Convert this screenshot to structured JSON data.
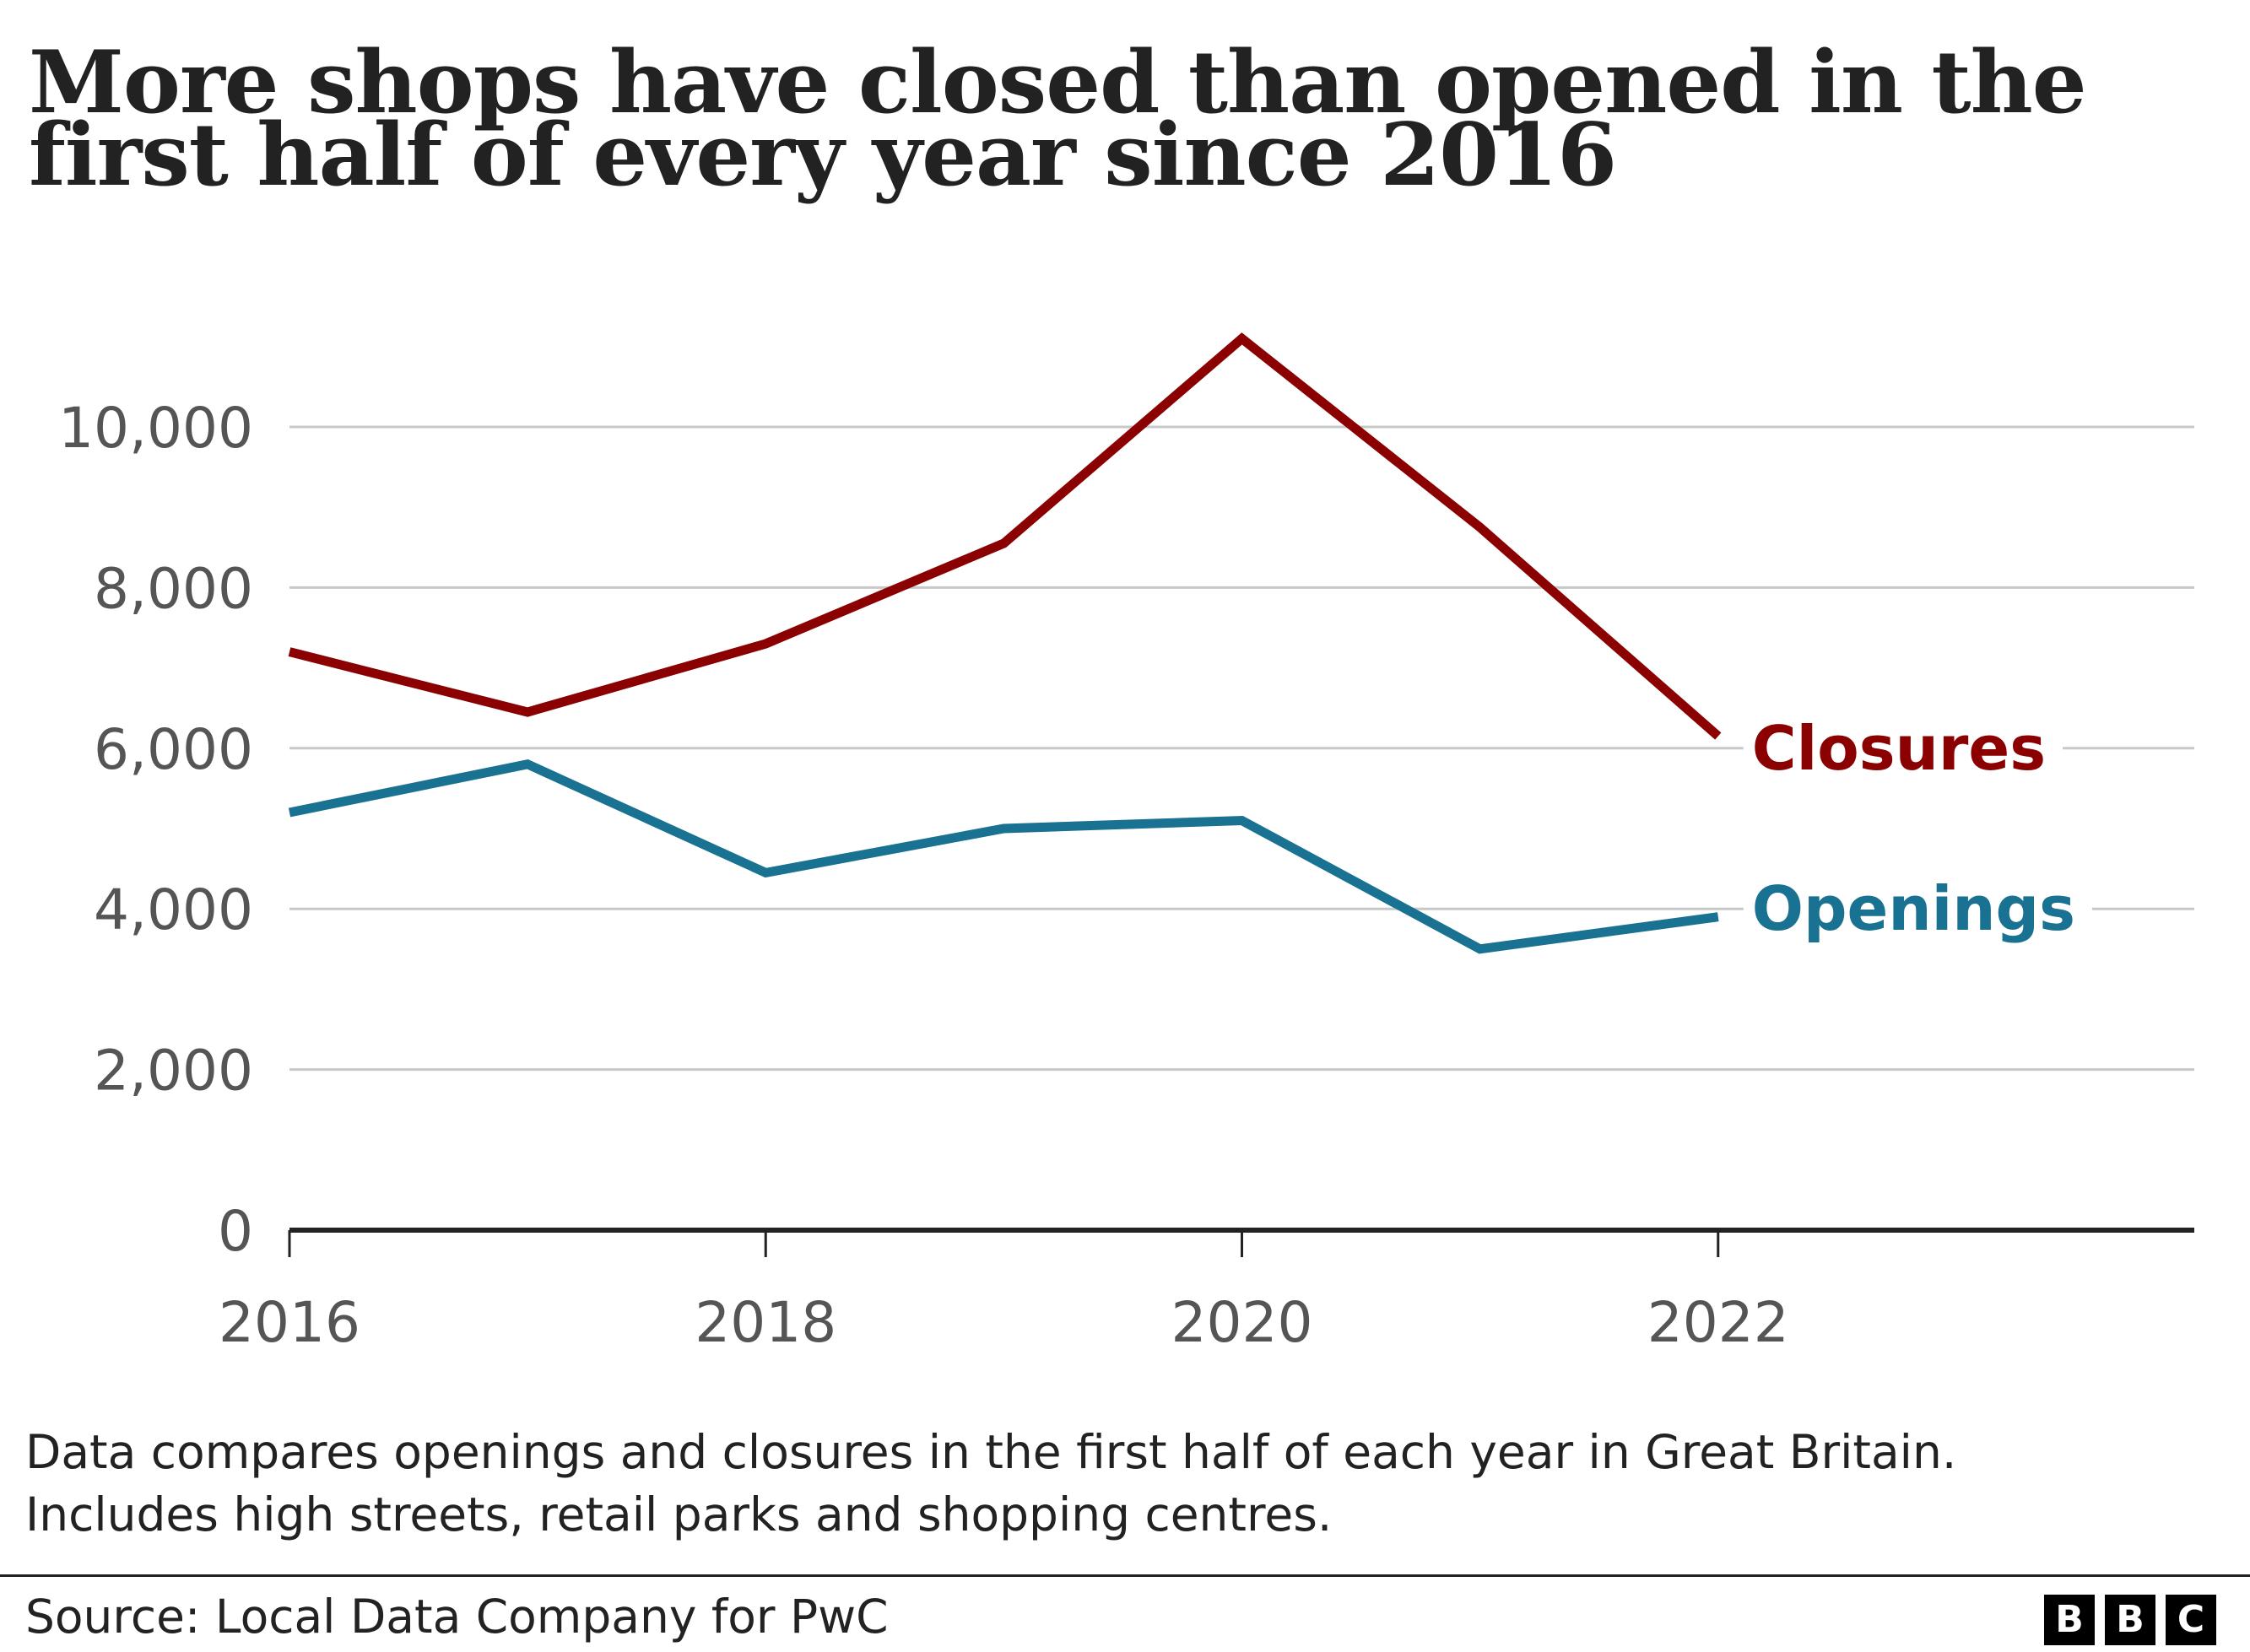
{
  "header": {
    "title_line1": "More shops have closed than opened in the",
    "title_line2": "first half of every year since 2016"
  },
  "chart_data": {
    "type": "line",
    "x": [
      2016,
      2017,
      2018,
      2019,
      2020,
      2021,
      2022
    ],
    "x_ticks": [
      "2016",
      "2018",
      "2020",
      "2022"
    ],
    "y_ticks": [
      "0",
      "2,000",
      "4,000",
      "6,000",
      "8,000",
      "10,000"
    ],
    "ylim": [
      0,
      11500
    ],
    "xlim": [
      2016,
      2024
    ],
    "grid": true,
    "series": [
      {
        "name": "Closures",
        "color": "#8b0000",
        "values": [
          7200,
          6450,
          7300,
          8550,
          11100,
          8750,
          6150
        ]
      },
      {
        "name": "Openings",
        "color": "#1a7292",
        "values": [
          5200,
          5800,
          4450,
          5000,
          5100,
          3500,
          3900
        ]
      }
    ]
  },
  "notes": {
    "line1": "Data compares openings and closures in the first half of each year in Great Britain.",
    "line2": "Includes high streets, retail parks and shopping centres."
  },
  "footer": {
    "source": "Source: Local Data Company for PwC",
    "logo_letters": [
      "B",
      "B",
      "C"
    ]
  }
}
